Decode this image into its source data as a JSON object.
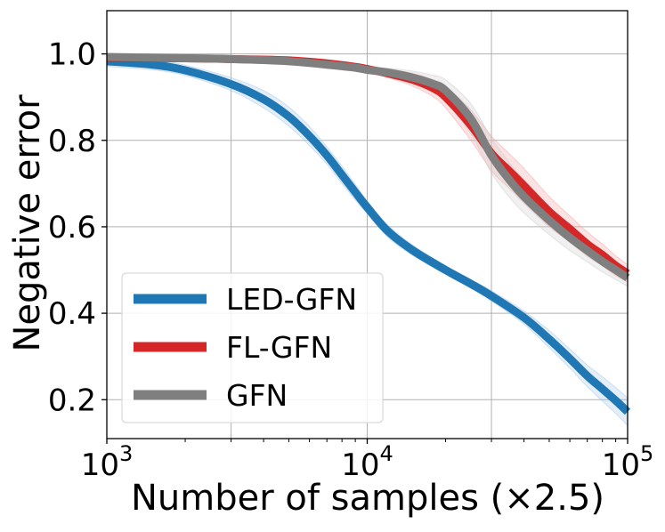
{
  "chart_data": {
    "type": "line",
    "title": "",
    "xlabel": "Number of samples (×2.5)",
    "ylabel": "Negative error",
    "xscale": "log",
    "xlim": [
      1000,
      100000
    ],
    "ylim": [
      0.11,
      1.1
    ],
    "xticks": [
      {
        "value": 1000,
        "base": "10",
        "exp": "3"
      },
      {
        "value": 10000,
        "base": "10",
        "exp": "4"
      },
      {
        "value": 100000,
        "base": "10",
        "exp": "5"
      }
    ],
    "yticks": [
      {
        "value": 1.0,
        "label": "1.0"
      },
      {
        "value": 0.8,
        "label": "0.8"
      },
      {
        "value": 0.6,
        "label": "0.6"
      },
      {
        "value": 0.4,
        "label": "0.4"
      },
      {
        "value": 0.2,
        "label": "0.2"
      }
    ],
    "grid": true,
    "legend_position": "lower-left",
    "series": [
      {
        "name": "LED-GFN",
        "color": "#1f77b4",
        "band_color": "#a6c8e8",
        "x": [
          1000,
          1500,
          2000,
          3000,
          4000,
          5000,
          6000,
          7000,
          8000,
          9000,
          10000,
          12000,
          15000,
          20000,
          25000,
          30000,
          40000,
          50000,
          60000,
          70000,
          80000,
          90000,
          100000
        ],
        "y": [
          0.983,
          0.975,
          0.962,
          0.93,
          0.895,
          0.855,
          0.81,
          0.765,
          0.72,
          0.68,
          0.645,
          0.59,
          0.545,
          0.5,
          0.468,
          0.44,
          0.39,
          0.34,
          0.295,
          0.255,
          0.225,
          0.198,
          0.172
        ],
        "band": [
          0.012,
          0.012,
          0.012,
          0.015,
          0.02,
          0.022,
          0.022,
          0.02,
          0.02,
          0.018,
          0.015,
          0.014,
          0.012,
          0.01,
          0.01,
          0.012,
          0.015,
          0.02,
          0.022,
          0.025,
          0.028,
          0.03,
          0.032
        ]
      },
      {
        "name": "FL-GFN",
        "color": "#d62728",
        "band_color": "#f4a3a3",
        "x": [
          1000,
          2000,
          3000,
          5000,
          7000,
          9000,
          10000,
          12000,
          15000,
          18000,
          20000,
          25000,
          30000,
          35000,
          40000,
          50000,
          60000,
          70000,
          80000,
          90000,
          100000
        ],
        "y": [
          0.99,
          0.99,
          0.988,
          0.985,
          0.978,
          0.97,
          0.965,
          0.955,
          0.94,
          0.92,
          0.9,
          0.835,
          0.77,
          0.73,
          0.695,
          0.635,
          0.595,
          0.56,
          0.535,
          0.51,
          0.492
        ],
        "band": [
          0.005,
          0.005,
          0.005,
          0.006,
          0.006,
          0.008,
          0.008,
          0.01,
          0.015,
          0.02,
          0.025,
          0.035,
          0.04,
          0.04,
          0.04,
          0.035,
          0.03,
          0.028,
          0.025,
          0.023,
          0.02
        ]
      },
      {
        "name": "GFN",
        "color": "#7f7f7f",
        "band_color": "#cccccc",
        "x": [
          1000,
          2000,
          3000,
          5000,
          7000,
          9000,
          10000,
          12000,
          15000,
          18000,
          20000,
          25000,
          30000,
          35000,
          40000,
          50000,
          60000,
          70000,
          80000,
          90000,
          100000
        ],
        "y": [
          0.993,
          0.99,
          0.988,
          0.983,
          0.975,
          0.968,
          0.963,
          0.957,
          0.945,
          0.93,
          0.915,
          0.85,
          0.765,
          0.71,
          0.67,
          0.615,
          0.575,
          0.545,
          0.52,
          0.5,
          0.482
        ],
        "band": [
          0.004,
          0.004,
          0.005,
          0.005,
          0.006,
          0.007,
          0.008,
          0.01,
          0.015,
          0.02,
          0.025,
          0.035,
          0.04,
          0.04,
          0.038,
          0.033,
          0.03,
          0.026,
          0.024,
          0.022,
          0.02
        ]
      }
    ]
  }
}
